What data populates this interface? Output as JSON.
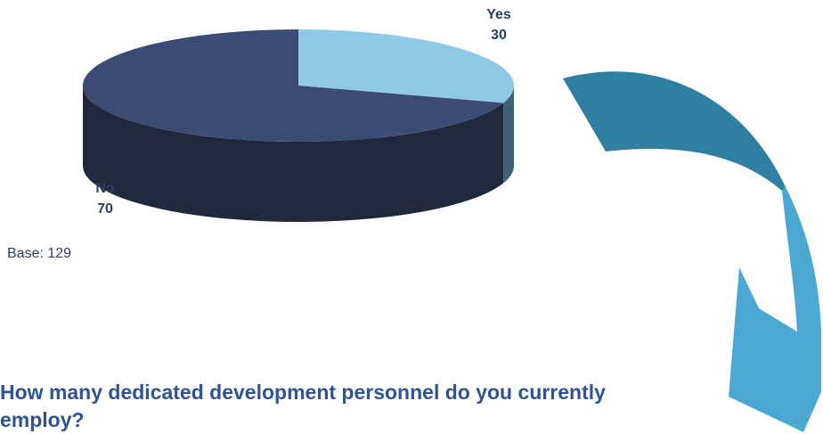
{
  "chart_data": {
    "type": "pie",
    "categories": [
      "Yes",
      "No"
    ],
    "values": [
      30,
      70
    ],
    "colors": {
      "Yes": {
        "top": "#8ecae6",
        "side": "#3f6078"
      },
      "No": {
        "top": "#3c4b74",
        "side": "#20293c"
      }
    },
    "labels": {
      "Yes": "Yes\n30",
      "No": "No\n70"
    }
  },
  "base_note": "Base: 129",
  "question": "How many dedicated development personnel do you currently employ?",
  "arrow": {
    "color_light": "#4aa8d2",
    "color_dark": "#2f7fa3",
    "direction": "down"
  }
}
